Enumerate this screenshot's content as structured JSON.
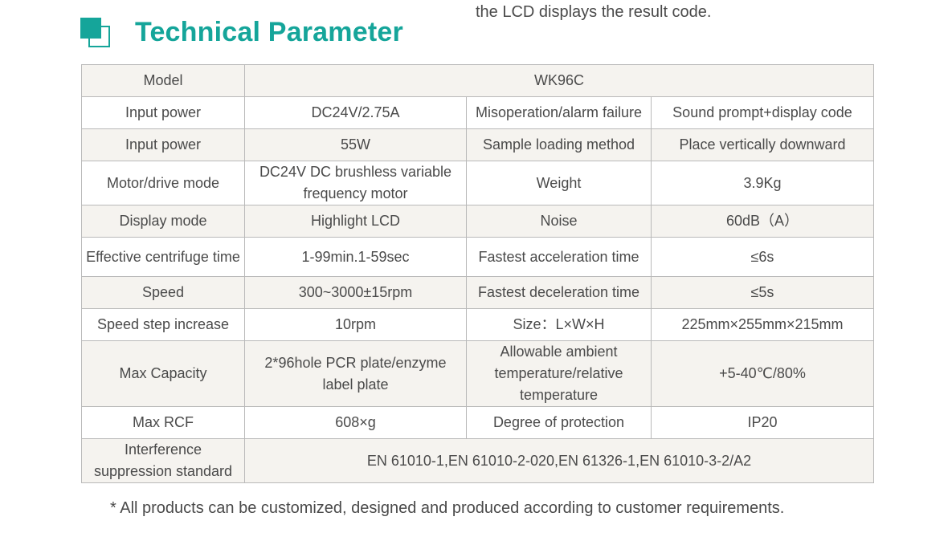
{
  "top_note": "the LCD displays the result code.",
  "title": "Technical Parameter",
  "table": {
    "model_row": {
      "label": "Model",
      "value": "WK96C"
    },
    "rows": [
      {
        "c1": "Input power",
        "c2": "DC24V/2.75A",
        "c3": "Misoperation/alarm failure",
        "c4": "Sound prompt+display code"
      },
      {
        "c1": "Input power",
        "c2": "55W",
        "c3": "Sample loading method",
        "c4": "Place vertically downward"
      },
      {
        "c1": "Motor/drive mode",
        "c2": "DC24V DC brushless variable frequency motor",
        "c3": "Weight",
        "c4": "3.9Kg"
      },
      {
        "c1": "Display mode",
        "c2": "Highlight LCD",
        "c3": "Noise",
        "c4": "60dB（A）"
      },
      {
        "c1": "Effective centrifuge time",
        "c2": "1-99min.1-59sec",
        "c3": "Fastest acceleration time",
        "c4": "≤6s"
      },
      {
        "c1": "Speed",
        "c2": "300~3000±15rpm",
        "c3": "Fastest deceleration time",
        "c4": "≤5s"
      },
      {
        "c1": "Speed step increase",
        "c2": "10rpm",
        "c3": "Size：L×W×H",
        "c4": "225mm×255mm×215mm"
      },
      {
        "c1": "Max Capacity",
        "c2": "2*96hole PCR plate/enzyme label plate",
        "c3": "Allowable ambient temperature/relative temperature",
        "c4": "+5-40℃/80%"
      },
      {
        "c1": "Max RCF",
        "c2": "608×g",
        "c3": "Degree of protection",
        "c4": "IP20"
      }
    ],
    "standard_row": {
      "label": "Interference suppression standard",
      "value": "EN 61010-1,EN 61010-2-020,EN 61326-1,EN 61010-3-2/A2"
    }
  },
  "footnote": "*  All products can be customized, designed and produced according to customer requirements.",
  "colors": {
    "accent": "#15a59a",
    "row_shade": "#f5f3ef",
    "border": "#b9b9b9"
  }
}
